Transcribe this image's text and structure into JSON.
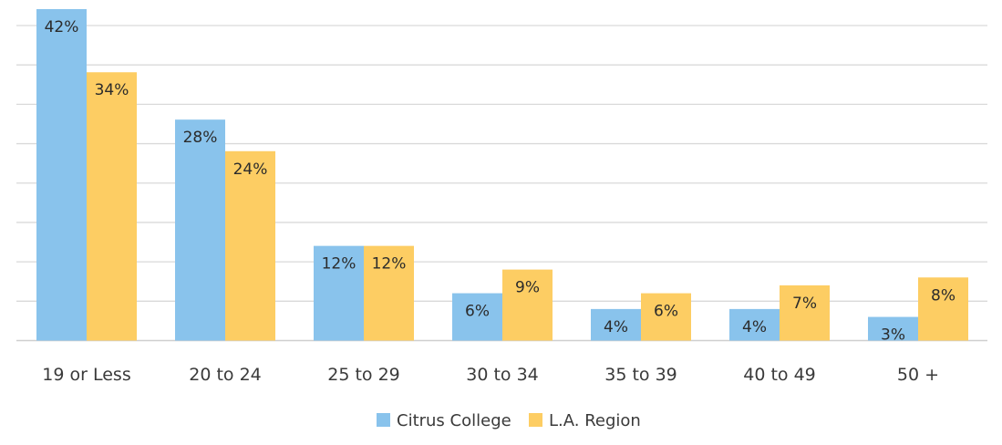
{
  "chart_data": {
    "type": "bar",
    "title": "",
    "xlabel": "",
    "ylabel": "",
    "ylim": [
      0,
      42
    ],
    "grid": true,
    "legend_position": "bottom-center",
    "categories": [
      "19 or Less",
      "20 to 24",
      "25 to 29",
      "30 to 34",
      "35 to 39",
      "40 to 49",
      "50 +"
    ],
    "series": [
      {
        "name": "Citrus College",
        "color": "#89c3ec",
        "values": [
          42,
          28,
          12,
          6,
          4,
          4,
          3
        ],
        "labels": [
          "42%",
          "28%",
          "12%",
          "6%",
          "4%",
          "4%",
          "3%"
        ]
      },
      {
        "name": "L.A. Region",
        "color": "#fdcd63",
        "values": [
          34,
          24,
          12,
          9,
          6,
          7,
          8
        ],
        "labels": [
          "34%",
          "24%",
          "12%",
          "9%",
          "6%",
          "7%",
          "8%"
        ]
      }
    ]
  }
}
